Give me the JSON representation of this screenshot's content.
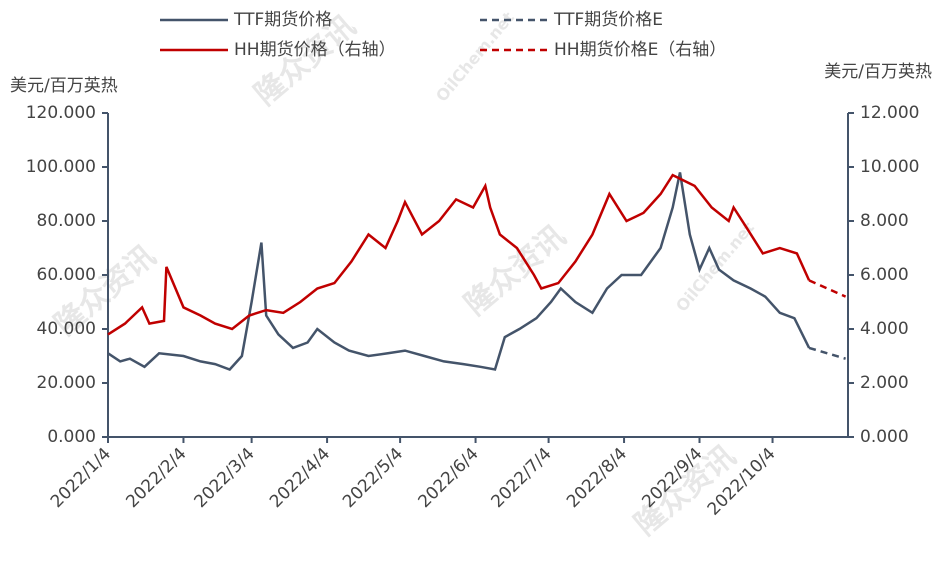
{
  "chart_data": {
    "type": "line",
    "y_label": "美元/百万英热",
    "y2_label": "美元/百万英热",
    "watermark": [
      "隆众资讯",
      "OilChem.net"
    ],
    "xlim": [
      "2022/1/4",
      "2022/11/4"
    ],
    "xticks": [
      "2022/1/4",
      "2022/2/4",
      "2022/3/4",
      "2022/4/4",
      "2022/5/4",
      "2022/6/4",
      "2022/7/4",
      "2022/8/4",
      "2022/9/4",
      "2022/10/4"
    ],
    "ylim": [
      0,
      120
    ],
    "yticks": [
      {
        "value": 0,
        "label": "0.000"
      },
      {
        "value": 20,
        "label": "20.000"
      },
      {
        "value": 40,
        "label": "40.000"
      },
      {
        "value": 60,
        "label": "60.000"
      },
      {
        "value": 80,
        "label": "80.000"
      },
      {
        "value": 100,
        "label": "100.000"
      },
      {
        "value": 120,
        "label": "120.000"
      }
    ],
    "y2lim": [
      0,
      12
    ],
    "y2ticks": [
      {
        "value": 0,
        "label": "0.000"
      },
      {
        "value": 2,
        "label": "2.000"
      },
      {
        "value": 4,
        "label": "4.000"
      },
      {
        "value": 6,
        "label": "6.000"
      },
      {
        "value": 8,
        "label": "8.000"
      },
      {
        "value": 10,
        "label": "10.000"
      },
      {
        "value": 12,
        "label": "12.000"
      }
    ],
    "series": [
      {
        "name": "TTF期货价格",
        "color": "#44546a",
        "dash": false,
        "x": [
          "2022/1/4",
          "2022/1/9",
          "2022/1/13",
          "2022/1/19",
          "2022/1/25",
          "2022/2/4",
          "2022/2/11",
          "2022/2/17",
          "2022/2/23",
          "2022/2/28",
          "2022/3/4",
          "2022/3/8",
          "2022/3/10",
          "2022/3/15",
          "2022/3/21",
          "2022/3/27",
          "2022/3/31",
          "2022/4/7",
          "2022/4/13",
          "2022/4/21",
          "2022/4/29",
          "2022/5/6",
          "2022/5/14",
          "2022/5/22",
          "2022/5/30",
          "2022/6/6",
          "2022/6/12",
          "2022/6/16",
          "2022/6/22",
          "2022/6/29",
          "2022/7/5",
          "2022/7/9",
          "2022/7/15",
          "2022/7/22",
          "2022/7/28",
          "2022/8/3",
          "2022/8/11",
          "2022/8/19",
          "2022/8/24",
          "2022/8/27",
          "2022/8/31",
          "2022/9/4",
          "2022/9/8",
          "2022/9/12",
          "2022/9/18",
          "2022/9/25",
          "2022/10/1",
          "2022/10/7",
          "2022/10/13",
          "2022/10/19"
        ],
        "values": [
          31,
          28,
          29,
          26,
          31,
          30,
          28,
          27,
          25,
          30,
          50,
          72,
          45,
          38,
          33,
          35,
          40,
          35,
          32,
          30,
          31,
          32,
          30,
          28,
          27,
          26,
          25,
          37,
          40,
          44,
          50,
          55,
          50,
          46,
          55,
          60,
          60,
          70,
          85,
          98,
          75,
          62,
          70,
          62,
          58,
          55,
          52,
          46,
          44,
          33
        ]
      },
      {
        "name": "TTF期货价格E",
        "color": "#44546a",
        "dash": true,
        "x": [
          "2022/10/19",
          "2022/11/3"
        ],
        "values": [
          33,
          29
        ]
      },
      {
        "name": "HH期货价格（右轴）",
        "color": "#c00000",
        "dash": false,
        "axis": "y2",
        "x": [
          "2022/1/4",
          "2022/1/11",
          "2022/1/18",
          "2022/1/21",
          "2022/1/27",
          "2022/1/28",
          "2022/2/4",
          "2022/2/11",
          "2022/2/17",
          "2022/2/24",
          "2022/3/3",
          "2022/3/10",
          "2022/3/17",
          "2022/3/24",
          "2022/3/31",
          "2022/4/7",
          "2022/4/14",
          "2022/4/21",
          "2022/4/28",
          "2022/5/3",
          "2022/5/6",
          "2022/5/13",
          "2022/5/20",
          "2022/5/27",
          "2022/6/3",
          "2022/6/8",
          "2022/6/10",
          "2022/6/14",
          "2022/6/21",
          "2022/6/28",
          "2022/7/1",
          "2022/7/8",
          "2022/7/15",
          "2022/7/22",
          "2022/7/29",
          "2022/8/5",
          "2022/8/12",
          "2022/8/19",
          "2022/8/24",
          "2022/9/2",
          "2022/9/9",
          "2022/9/16",
          "2022/9/18",
          "2022/9/23",
          "2022/9/30",
          "2022/10/7",
          "2022/10/14",
          "2022/10/19"
        ],
        "values": [
          3.8,
          4.2,
          4.8,
          4.2,
          4.3,
          6.3,
          4.8,
          4.5,
          4.2,
          4.0,
          4.5,
          4.7,
          4.6,
          5.0,
          5.5,
          5.7,
          6.5,
          7.5,
          7.0,
          8.0,
          8.7,
          7.5,
          8.0,
          8.8,
          8.5,
          9.3,
          8.5,
          7.5,
          7.0,
          6.0,
          5.5,
          5.7,
          6.5,
          7.5,
          9.0,
          8.0,
          8.3,
          9.0,
          9.7,
          9.3,
          8.5,
          8.0,
          8.5,
          7.8,
          6.8,
          7.0,
          6.8,
          5.8
        ]
      },
      {
        "name": "HH期货价格E（右轴）",
        "color": "#c00000",
        "dash": true,
        "axis": "y2",
        "x": [
          "2022/10/19",
          "2022/11/3"
        ],
        "values": [
          5.8,
          5.2
        ]
      }
    ]
  }
}
